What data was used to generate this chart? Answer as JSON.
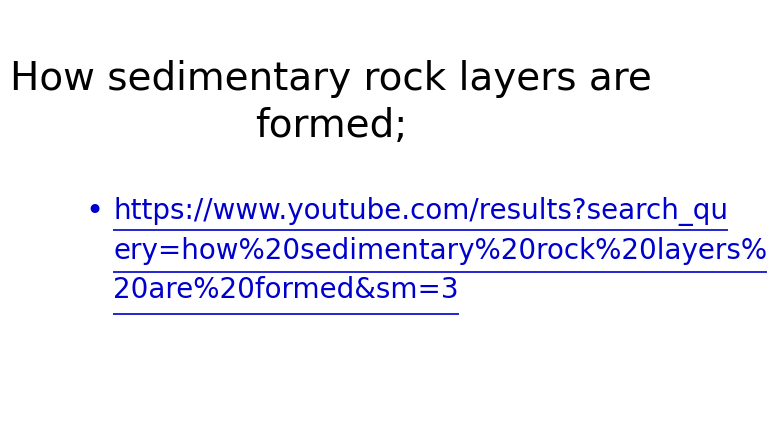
{
  "title_line1": "How sedimentary rock layers are",
  "title_line2": "formed;",
  "title_color": "#000000",
  "title_fontsize": 28,
  "bullet_char": "•",
  "link_line1": "https://www.youtube.com/results?search_qu",
  "link_line2": "ery=how%20sedimentary%20rock%20layers%",
  "link_line3": "20are%20formed&sm=3",
  "link_color": "#0000CC",
  "link_fontsize": 20,
  "bullet_fontsize": 22,
  "background_color": "#ffffff"
}
